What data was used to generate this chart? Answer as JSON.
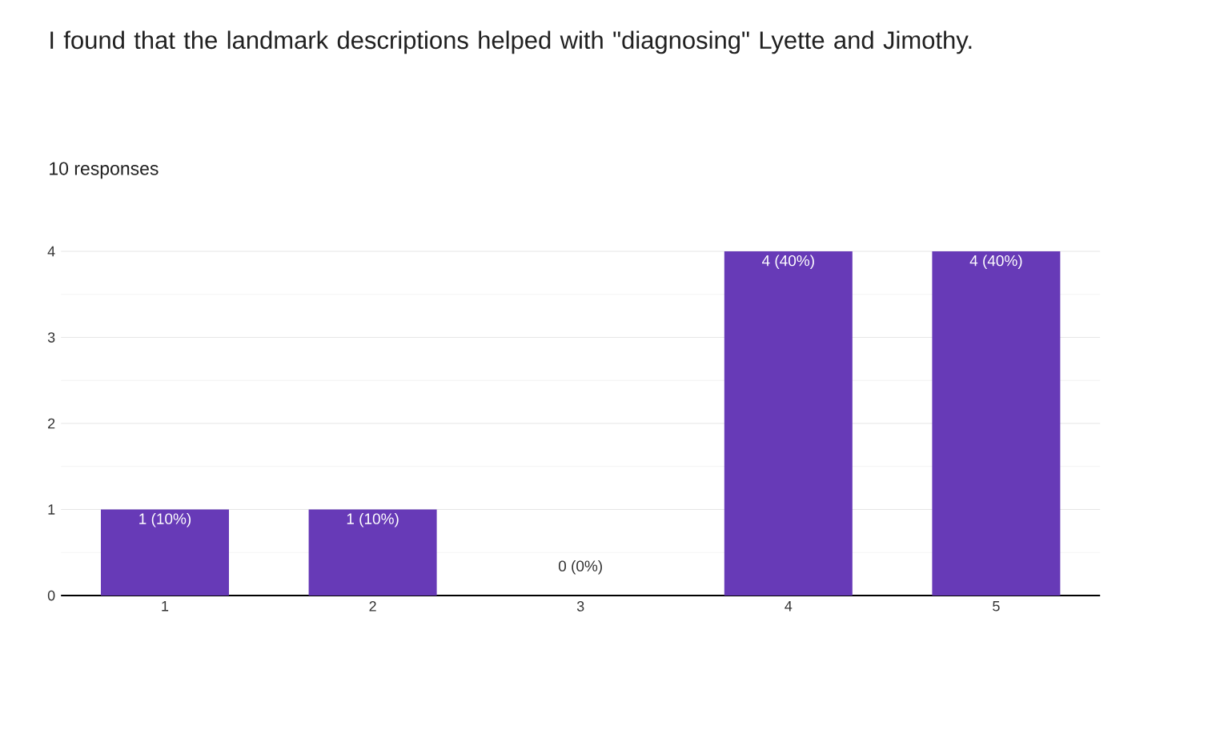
{
  "chart_data": {
    "type": "bar",
    "title": "I found that the landmark descriptions helped with \"diagnosing\" Lyette and Jimothy.",
    "subtitle": "10 responses",
    "categories": [
      "1",
      "2",
      "3",
      "4",
      "5"
    ],
    "values": [
      1,
      1,
      0,
      4,
      4
    ],
    "value_labels": [
      "1 (10%)",
      "1 (10%)",
      "0 (0%)",
      "4 (40%)",
      "4 (40%)"
    ],
    "color": "#673ab7",
    "ylim": [
      0,
      4
    ],
    "yticks": [
      0,
      1,
      2,
      3,
      4
    ],
    "grid": "y"
  }
}
